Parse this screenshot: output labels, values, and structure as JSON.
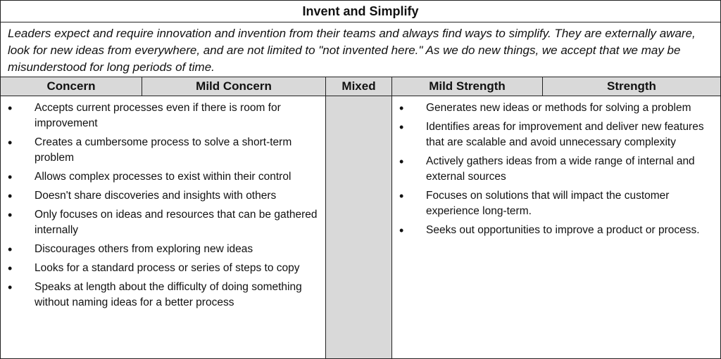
{
  "title": "Invent and Simplify",
  "description": "Leaders expect and require innovation and invention from their teams and always find ways to simplify. They are externally aware, look for new ideas from everywhere, and are not limited to \"not invented here.\" As we do new things, we accept that we may be misunderstood for long periods of time.",
  "columns": [
    "Concern",
    "Mild Concern",
    "Mixed",
    "Mild Strength",
    "Strength"
  ],
  "concern_items": [
    "Accepts current processes even if there is room for improvement",
    "Creates a cumbersome process to solve a short-term problem",
    "Allows complex processes to exist within their control",
    "Doesn't share discoveries and insights with others",
    "Only focuses on ideas and resources that can be gathered internally",
    "Discourages others from exploring new ideas",
    "Looks for a standard process or series of steps to copy",
    "Speaks at length about the difficulty of doing something without naming ideas for a better process"
  ],
  "strength_items": [
    "Generates new ideas or methods for solving a problem",
    "Identifies areas for improvement and deliver new features that are scalable and avoid unnecessary complexity",
    "Actively gathers ideas from a wide range of internal and external sources",
    "Focuses on solutions that will impact the customer experience long-term.",
    "Seeks out opportunities to improve a product or process."
  ]
}
